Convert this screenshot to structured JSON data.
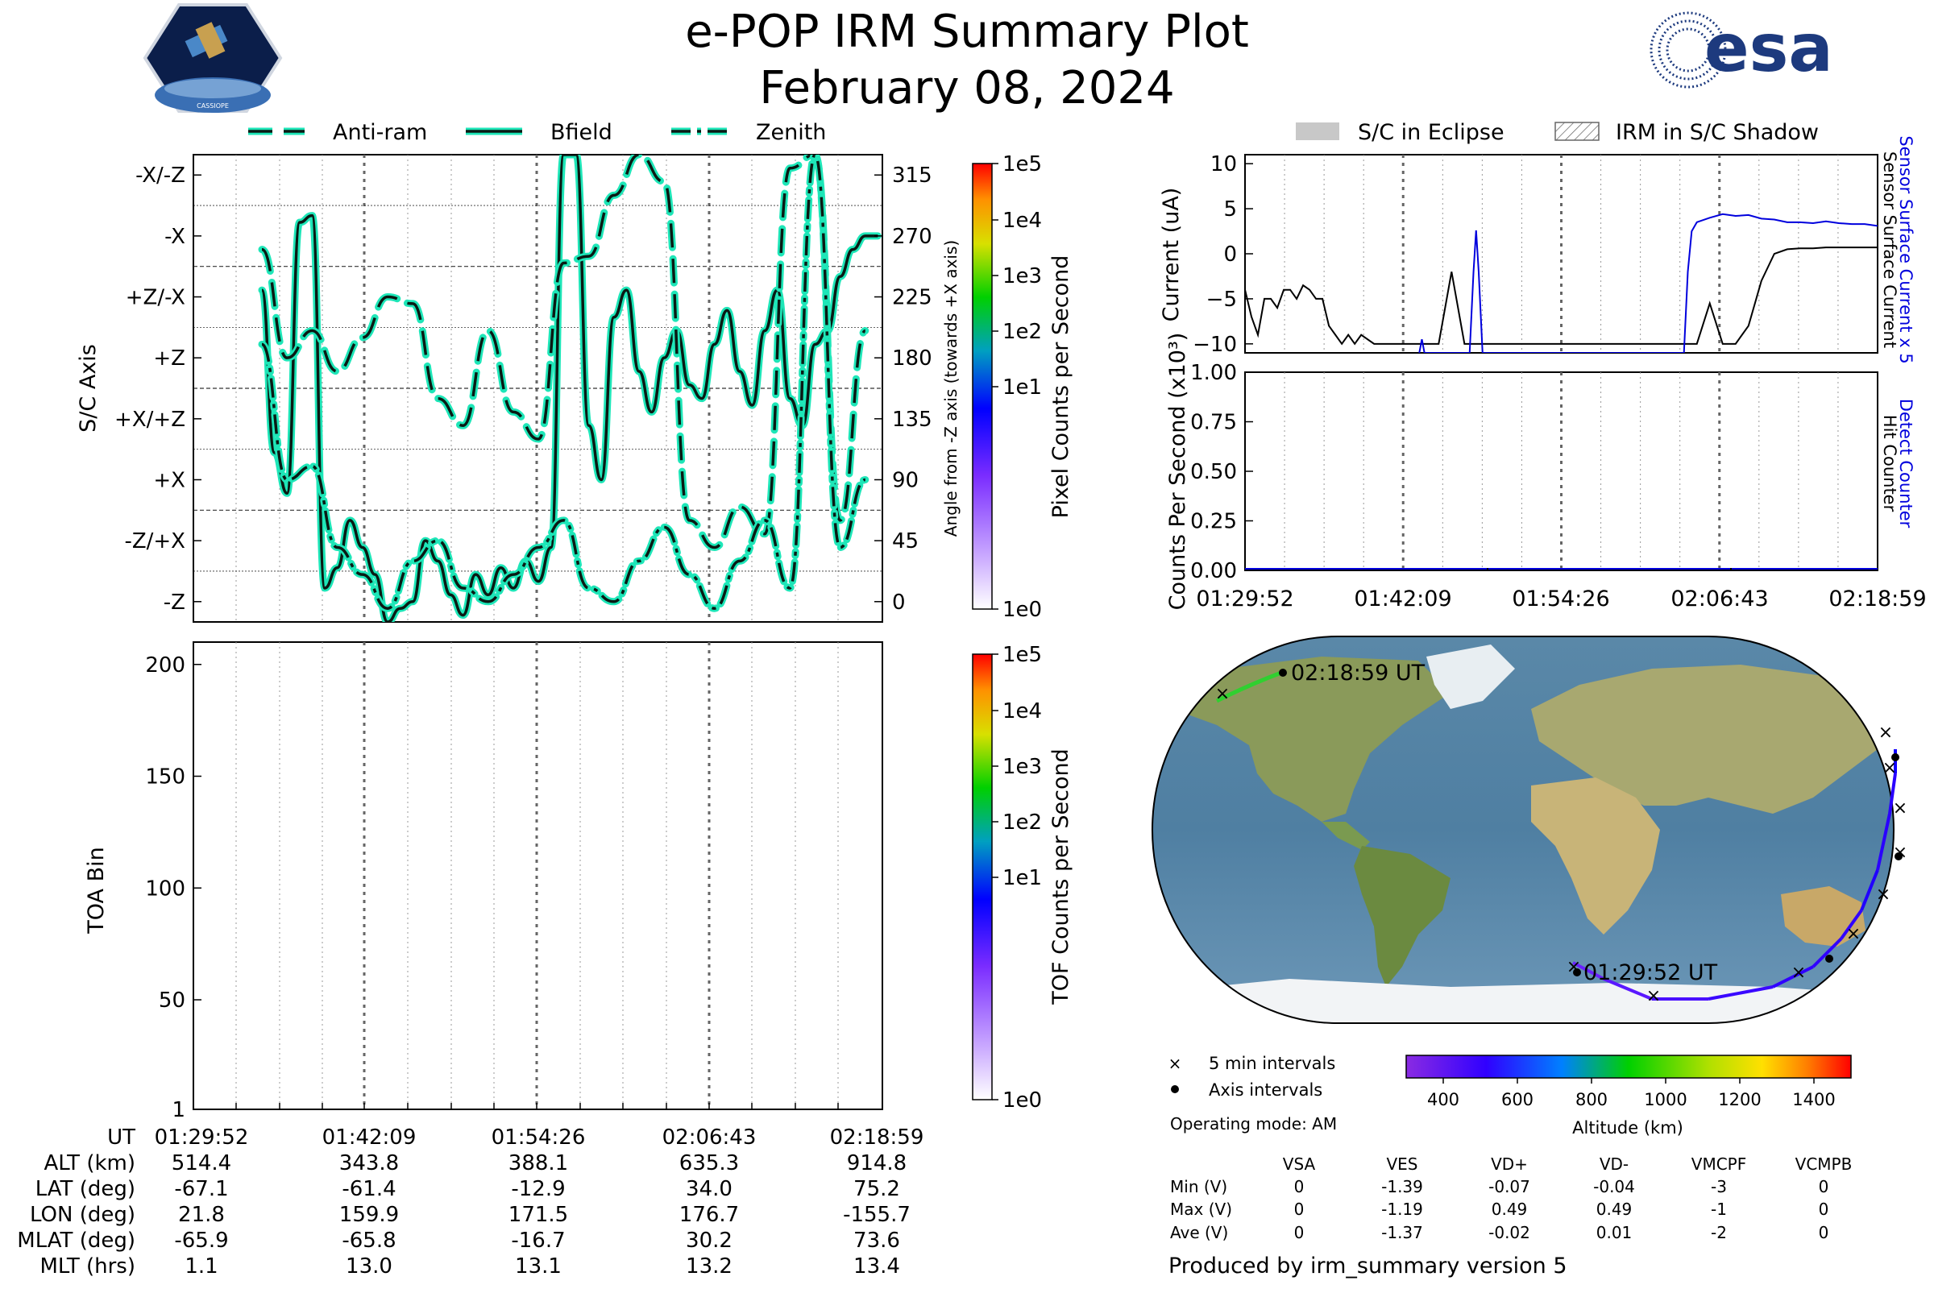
{
  "header": {
    "title": "e-POP IRM Summary Plot",
    "date": "February 08, 2024",
    "left_logo_text": "CASSIOPE",
    "right_logo_text": "esa"
  },
  "attitude_legend": [
    "Anti-ram",
    "Bfield",
    "Zenith"
  ],
  "eclipse_legend": [
    "S/C in Eclipse",
    "IRM in S/C Shadow"
  ],
  "time_ticks": [
    "01:29:52",
    "01:42:09",
    "01:54:26",
    "02:06:43",
    "02:18:59"
  ],
  "chart_data": [
    {
      "id": "attitude",
      "type": "line",
      "ylabel": "S/C Axis",
      "ylabel_right": "Angle from -Z axis (towards +X axis)",
      "axis_labels": [
        "-Z",
        "-Z/+X",
        "+X",
        "+X/+Z",
        "+Z",
        "+Z/-X",
        "-X",
        "-X/-Z"
      ],
      "angle_ticks": [
        0,
        45,
        90,
        135,
        180,
        225,
        270,
        315
      ],
      "ylim": [
        -15,
        330
      ],
      "series": [
        {
          "name": "Bfield",
          "style": "solid",
          "x": [
            0,
            1,
            2,
            3,
            4,
            5,
            6,
            7,
            8,
            9,
            10,
            11,
            12,
            13,
            14,
            15,
            16,
            17,
            18,
            19,
            20,
            21,
            22,
            23,
            24,
            25,
            26,
            27,
            28,
            29,
            30,
            31,
            32,
            33,
            34,
            35,
            36,
            37,
            38,
            39,
            40,
            41,
            42,
            43,
            44,
            45,
            46,
            47,
            48,
            49
          ],
          "y": [
            230,
            110,
            80,
            280,
            285,
            10,
            25,
            60,
            40,
            20,
            -15,
            -5,
            0,
            45,
            30,
            5,
            -10,
            20,
            5,
            25,
            10,
            30,
            15,
            40,
            330,
            330,
            130,
            90,
            210,
            230,
            170,
            140,
            180,
            200,
            160,
            150,
            190,
            215,
            170,
            145,
            200,
            230,
            150,
            130,
            190,
            200,
            240,
            260,
            270,
            270
          ]
        },
        {
          "name": "Anti-ram",
          "style": "dashed",
          "x": [
            0,
            2,
            4,
            6,
            8,
            10,
            12,
            14,
            16,
            18,
            20,
            22,
            24,
            26,
            28,
            30,
            32,
            34,
            36,
            38,
            40,
            42,
            44,
            46,
            48
          ],
          "y": [
            260,
            180,
            200,
            170,
            195,
            225,
            220,
            150,
            130,
            200,
            140,
            120,
            250,
            255,
            300,
            330,
            310,
            60,
            40,
            70,
            50,
            320,
            330,
            60,
            200
          ]
        },
        {
          "name": "Zenith",
          "style": "dashdot",
          "x": [
            0,
            2,
            4,
            6,
            8,
            10,
            12,
            14,
            16,
            18,
            20,
            22,
            24,
            26,
            28,
            30,
            32,
            34,
            36,
            38,
            40,
            42,
            44,
            46,
            48
          ],
          "y": [
            190,
            90,
            100,
            40,
            20,
            -5,
            30,
            45,
            10,
            0,
            20,
            40,
            60,
            10,
            0,
            30,
            55,
            20,
            -5,
            30,
            60,
            10,
            330,
            40,
            90
          ]
        }
      ]
    },
    {
      "id": "current",
      "type": "line",
      "ylabel": "Current (uA)",
      "right_labels": [
        "Sensor Surface Current x 5",
        "Sensor Surface Current"
      ],
      "ylim": [
        -11,
        11
      ],
      "yticks": [
        10,
        5,
        0,
        -5,
        -10
      ],
      "series": [
        {
          "name": "Sensor Surface Current",
          "color": "#000000",
          "x": [
            0,
            0.5,
            1,
            1.5,
            2,
            2.5,
            3,
            3.5,
            4,
            4.5,
            5,
            5.5,
            6,
            6.5,
            7,
            7.5,
            8,
            8.5,
            9,
            10,
            11,
            12,
            13,
            14,
            15,
            16,
            17,
            18,
            19,
            20,
            21,
            22,
            23,
            24,
            25,
            26,
            27,
            28,
            29,
            30,
            31,
            32,
            33,
            34,
            35,
            36,
            37,
            38,
            39,
            40,
            41,
            42,
            43,
            44,
            45,
            46,
            47,
            48,
            49
          ],
          "y": [
            -4,
            -7,
            -9,
            -5,
            -5,
            -6,
            -4,
            -4,
            -5,
            -3.5,
            -4,
            -5,
            -5,
            -8,
            -9,
            -10,
            -9,
            -10,
            -9,
            -10,
            -10,
            -10,
            -10,
            -10,
            -10,
            -2,
            -10,
            -10,
            -10,
            -10,
            -10,
            -10,
            -10,
            -10,
            -10,
            -10,
            -10,
            -10,
            -10,
            -10,
            -10,
            -10,
            -10,
            -10,
            -10,
            -5.5,
            -10,
            -10,
            -8,
            -3,
            0,
            0.5,
            0.6,
            0.6,
            0.7,
            0.7,
            0.7,
            0.7,
            0.7
          ]
        },
        {
          "name": "Sensor Surface Current x 5",
          "color": "#0000dd",
          "x": [
            13.5,
            13.7,
            13.9,
            17.4,
            17.7,
            17.9,
            18.1,
            18.4,
            34.0,
            34.3,
            34.6,
            35,
            36,
            37,
            38,
            39,
            40,
            41,
            42,
            43,
            44,
            45,
            46,
            47,
            48,
            49
          ],
          "y": [
            -11,
            -9.5,
            -11,
            -11,
            -2,
            2.6,
            -2,
            -11,
            -11,
            -2,
            2.5,
            3.5,
            4,
            4.4,
            4.2,
            4.3,
            3.9,
            3.8,
            3.5,
            3.5,
            3.4,
            3.6,
            3.4,
            3.3,
            3.3,
            3.1
          ]
        }
      ]
    },
    {
      "id": "counts",
      "type": "line",
      "ylabel": "Counts Per Second (x10³)",
      "right_labels": [
        "Detect Counter",
        "Hit Counter"
      ],
      "ylim": [
        0,
        1
      ],
      "yticks": [
        "1.00",
        "0.75",
        "0.50",
        "0.25",
        "0.00"
      ],
      "series": [
        {
          "name": "Detect Counter",
          "color": "#0000dd",
          "x": [
            0,
            49
          ],
          "y": [
            0,
            0
          ]
        },
        {
          "name": "Hit Counter",
          "color": "#000000",
          "x": [
            0,
            49
          ],
          "y": [
            0,
            0
          ]
        }
      ]
    },
    {
      "id": "tof",
      "type": "heatmap",
      "ylabel": "TOA Bin",
      "yticks": [
        200,
        150,
        100,
        50,
        1
      ],
      "ylim": [
        1,
        210
      ]
    }
  ],
  "colorbars": {
    "pixel_label": "Pixel Counts per Second",
    "tof_label": "TOF Counts per Second",
    "ticks": [
      "1e5",
      "1e4",
      "1e3",
      "1e2",
      "1e1",
      "1e0"
    ]
  },
  "ephemeris": {
    "labels": [
      "UT",
      "ALT (km)",
      "LAT (deg)",
      "LON (deg)",
      "MLAT (deg)",
      "MLT (hrs)"
    ],
    "columns": [
      [
        "01:29:52",
        "514.4",
        "-67.1",
        "21.8",
        "-65.9",
        "1.1"
      ],
      [
        "01:42:09",
        "343.8",
        "-61.4",
        "159.9",
        "-65.8",
        "13.0"
      ],
      [
        "01:54:26",
        "388.1",
        "-12.9",
        "171.5",
        "-16.7",
        "13.1"
      ],
      [
        "02:06:43",
        "635.3",
        "34.0",
        "176.7",
        "30.2",
        "13.2"
      ],
      [
        "02:18:59",
        "914.8",
        "75.2",
        "-155.7",
        "73.6",
        "13.4"
      ]
    ]
  },
  "map": {
    "start_label": "01:29:52 UT",
    "end_label": "02:18:59 UT"
  },
  "map_legend": {
    "five_min": "5 min intervals",
    "axis": "Axis intervals",
    "mode": "Operating mode: AM"
  },
  "altitude_bar": {
    "label": "Altitude (km)",
    "ticks": [
      "400",
      "600",
      "800",
      "1000",
      "1200",
      "1400"
    ]
  },
  "voltage_table": {
    "headers": [
      "VSA",
      "VES",
      "VD+",
      "VD-",
      "VMCPF",
      "VCMPB"
    ],
    "rows": [
      {
        "label": "Min (V)",
        "values": [
          "0",
          "-1.39",
          "-0.07",
          "-0.04",
          "-3",
          "0"
        ]
      },
      {
        "label": "Max (V)",
        "values": [
          "0",
          "-1.19",
          "0.49",
          "0.49",
          "-1",
          "0"
        ]
      },
      {
        "label": "Ave (V)",
        "values": [
          "0",
          "-1.37",
          "-0.02",
          "0.01",
          "-2",
          "0"
        ]
      }
    ]
  },
  "footer": "Produced by irm_summary version 5"
}
